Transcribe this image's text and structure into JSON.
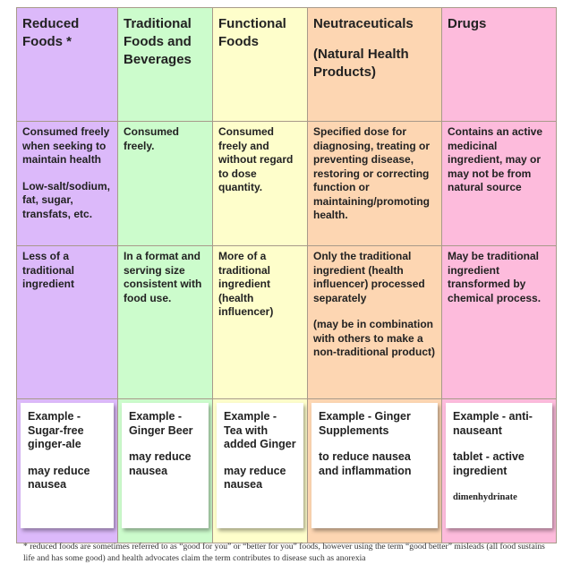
{
  "table": {
    "headers": [
      [
        "Reduced Foods *"
      ],
      [
        "Traditional Foods and Beverages"
      ],
      [
        "Functional Foods"
      ],
      [
        "Neutraceuticals",
        "(Natural Health Products)"
      ],
      [
        "Drugs"
      ]
    ],
    "rows": [
      [
        [
          "Consumed freely when seeking to maintain health",
          "Low-salt/sodium, fat, sugar, transfats, etc."
        ],
        [
          "Consumed freely."
        ],
        [
          "Consumed freely and without regard to dose quantity."
        ],
        [
          "Specified dose for diagnosing, treating or preventing disease, restoring or correcting function or maintaining/promoting health."
        ],
        [
          "Contains an active medicinal ingredient, may or may not be from natural source"
        ]
      ],
      [
        [
          "Less of a traditional ingredient"
        ],
        [
          "In a format and serving size consistent with food use."
        ],
        [
          "More of a traditional ingredient (health influencer)"
        ],
        [
          "Only the traditional ingredient (health influencer) processed separately",
          "(may be in combination with others to make a non-traditional product)"
        ],
        [
          "May be traditional ingredient transformed by chemical process."
        ]
      ],
      [
        [
          "Example - Sugar-free ginger-ale",
          "may reduce nausea"
        ],
        [
          "Example - Ginger Beer",
          "may reduce nausea"
        ],
        [
          "Example - Tea with added Ginger",
          "may reduce nausea"
        ],
        [
          "Example - Ginger Supplements",
          "to reduce nausea and inflammation"
        ],
        [
          "Example - anti-nauseant",
          "tablet - active ingredient",
          "dimenhydrinate"
        ]
      ]
    ]
  },
  "footnote": "* reduced foods are sometimes referred to as “good for you” or “better for you” foods, however using the term “good better” misleads (all food sustains life and has some good) and health advocates claim the term contributes to disease such as anorexia"
}
